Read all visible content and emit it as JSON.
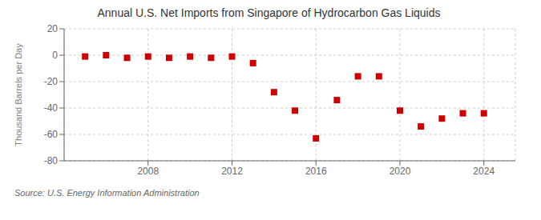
{
  "chart_data": {
    "type": "scatter",
    "title": "Annual U.S. Net Imports from Singapore of Hydrocarbon Gas Liquids",
    "ylabel": "Thousand Barrels per Day",
    "annotation": "Source: U.S. Energy Information Administration",
    "x": [
      2005,
      2006,
      2007,
      2008,
      2009,
      2010,
      2011,
      2012,
      2013,
      2014,
      2015,
      2016,
      2017,
      2018,
      2019,
      2020,
      2021,
      2022,
      2023,
      2024
    ],
    "values": [
      -1,
      0,
      -2,
      -1,
      -2,
      -1,
      -2,
      -1,
      -6,
      -28,
      -42,
      -63,
      -34,
      -16,
      -16,
      -42,
      -54,
      -48,
      -44,
      -44
    ],
    "color": "#cc0000",
    "marker": "square",
    "xlim": [
      2004.0,
      2025.5
    ],
    "ylim": [
      -80,
      20
    ],
    "xticks": [
      2008,
      2012,
      2016,
      2020,
      2024
    ],
    "yticks": [
      -80,
      -60,
      -40,
      -20,
      0,
      20
    ],
    "grid": true
  }
}
